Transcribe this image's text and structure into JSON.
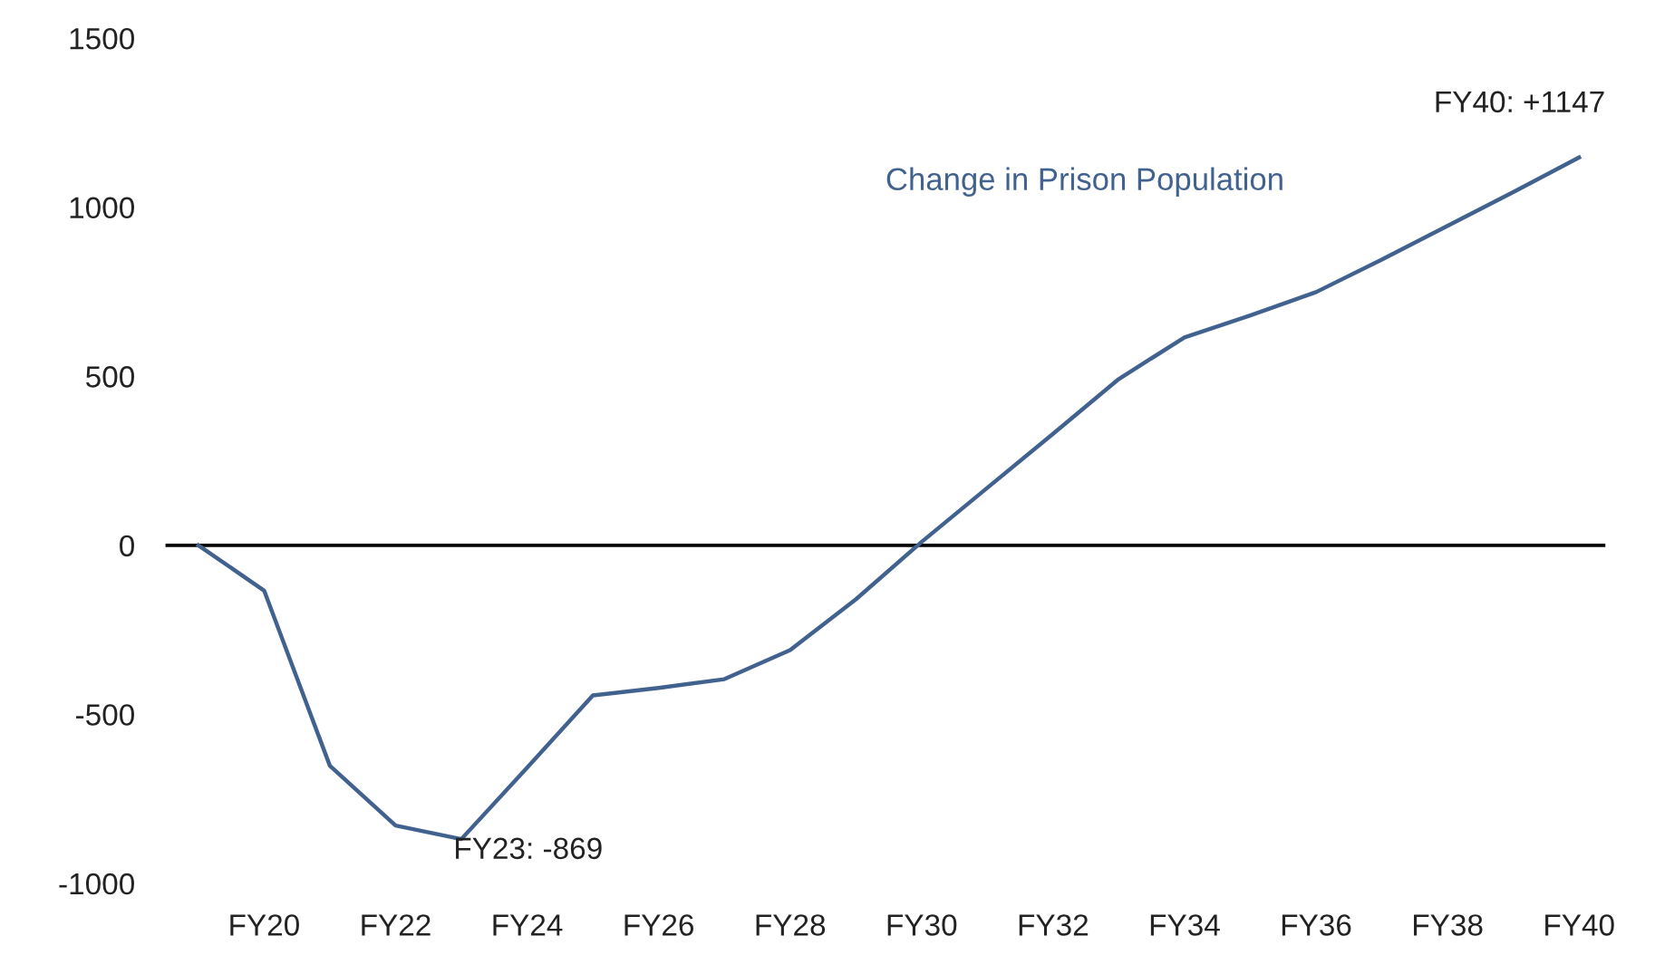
{
  "chart_data": {
    "type": "line",
    "categories": [
      null,
      "FY20",
      null,
      "FY22",
      null,
      "FY24",
      null,
      "FY26",
      null,
      "FY28",
      null,
      "FY30",
      null,
      "FY32",
      null,
      "FY34",
      null,
      "FY36",
      null,
      "FY38",
      null,
      "FY40"
    ],
    "series": [
      {
        "name": "Change in Prison Population",
        "color": "#41618f",
        "values": [
          0,
          -134,
          -652,
          -829,
          -869,
          -658,
          -444,
          -422,
          -396,
          -310,
          -160,
          10,
          170,
          330,
          492,
          615,
          680,
          749,
          845,
          945,
          1045,
          1147
        ]
      }
    ],
    "ylim": [
      -1000,
      1500
    ],
    "yticks": [
      -1000,
      -500,
      0,
      500,
      1000,
      1500
    ],
    "ref_lines": [
      {
        "axis": "y",
        "value": 0,
        "color": "#000000"
      }
    ],
    "annotations": [
      "FY23: -869",
      "FY40: +1147"
    ],
    "grid": false,
    "legend": false,
    "marker": "none",
    "line_style": "solid"
  }
}
